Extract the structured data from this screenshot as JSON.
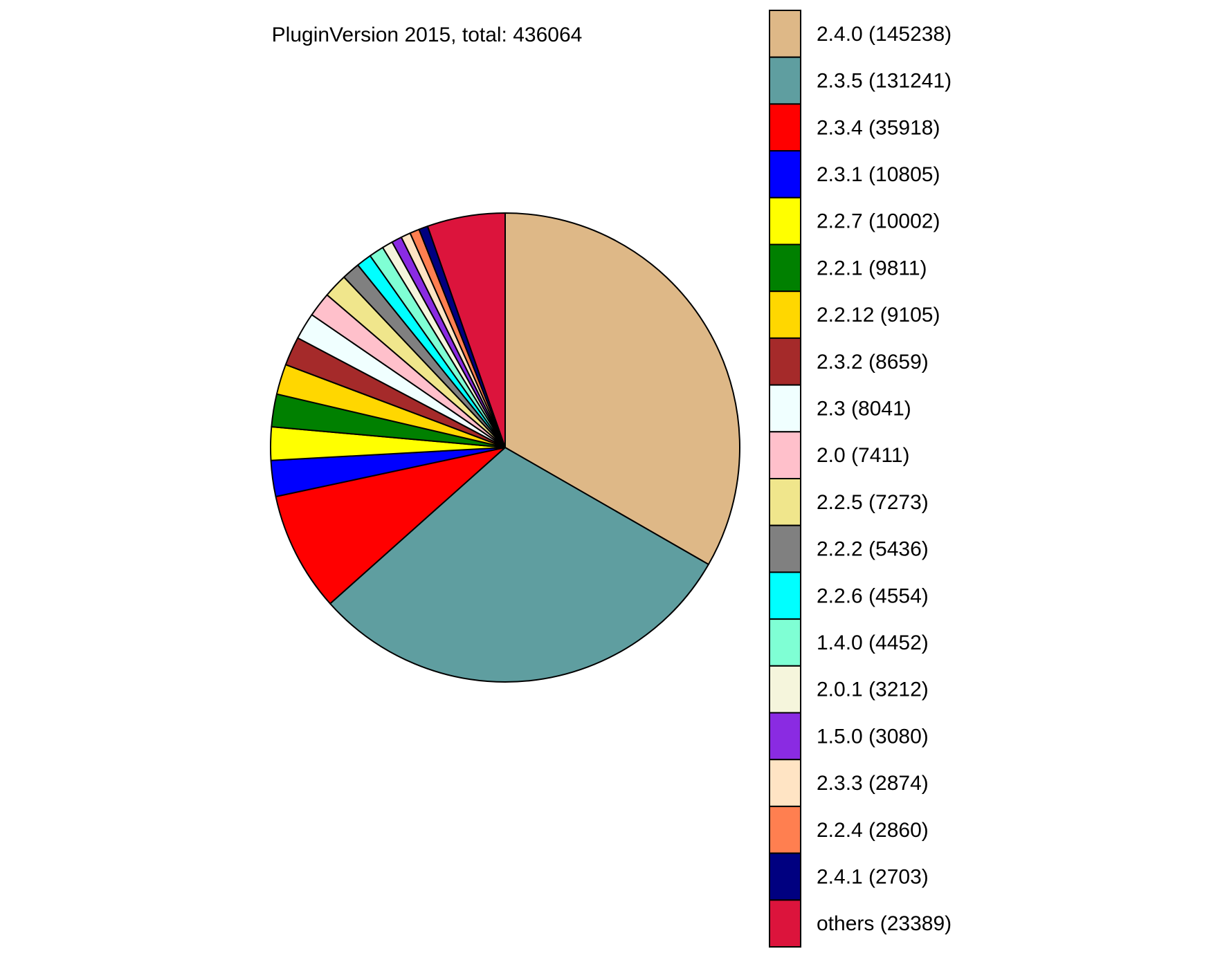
{
  "chart_data": {
    "type": "pie",
    "title": "PluginVersion 2015, total: 436064",
    "legend_placement": "right",
    "start_angle": "12 o'clock, clockwise",
    "slices": [
      {
        "label": "2.4.0 (145238)",
        "value": 145238,
        "color": "#DEB887"
      },
      {
        "label": "2.3.5 (131241)",
        "value": 131241,
        "color": "#5F9EA0"
      },
      {
        "label": "2.3.4 (35918)",
        "value": 35918,
        "color": "#FF0000"
      },
      {
        "label": "2.3.1 (10805)",
        "value": 10805,
        "color": "#0000FF"
      },
      {
        "label": "2.2.7 (10002)",
        "value": 10002,
        "color": "#FFFF00"
      },
      {
        "label": "2.2.1 (9811)",
        "value": 9811,
        "color": "#008000"
      },
      {
        "label": "2.2.12 (9105)",
        "value": 9105,
        "color": "#FFD700"
      },
      {
        "label": "2.3.2 (8659)",
        "value": 8659,
        "color": "#A52A2A"
      },
      {
        "label": "2.3 (8041)",
        "value": 8041,
        "color": "#F0FFFF"
      },
      {
        "label": "2.0 (7411)",
        "value": 7411,
        "color": "#FFC0CB"
      },
      {
        "label": "2.2.5 (7273)",
        "value": 7273,
        "color": "#F0E68C"
      },
      {
        "label": "2.2.2 (5436)",
        "value": 5436,
        "color": "#808080"
      },
      {
        "label": "2.2.6 (4554)",
        "value": 4554,
        "color": "#00FFFF"
      },
      {
        "label": "1.4.0 (4452)",
        "value": 4452,
        "color": "#7FFFD4"
      },
      {
        "label": "2.0.1 (3212)",
        "value": 3212,
        "color": "#F5F5DC"
      },
      {
        "label": "1.5.0 (3080)",
        "value": 3080,
        "color": "#8A2BE2"
      },
      {
        "label": "2.3.3 (2874)",
        "value": 2874,
        "color": "#FFE4C4"
      },
      {
        "label": "2.2.4 (2860)",
        "value": 2860,
        "color": "#FF7F50"
      },
      {
        "label": "2.4.1 (2703)",
        "value": 2703,
        "color": "#000080"
      },
      {
        "label": "others (23389)",
        "value": 23389,
        "color": "#DC143C"
      }
    ]
  }
}
